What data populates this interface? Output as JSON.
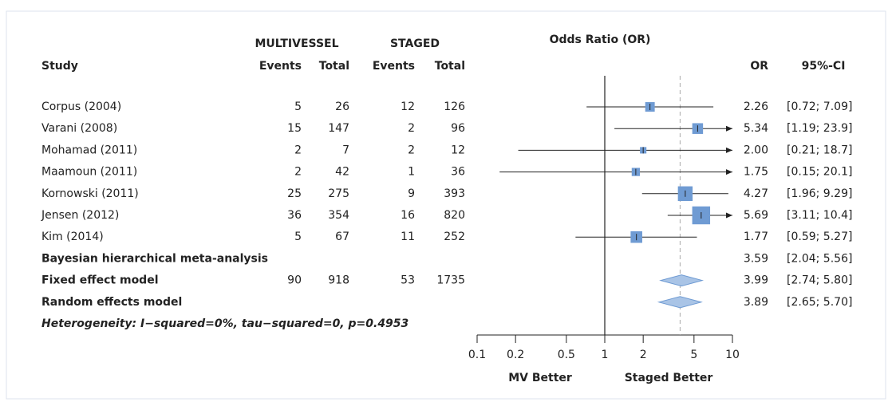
{
  "chart_data": {
    "type": "forest",
    "x_title": "Odds Ratio (OR)",
    "group_labels": [
      "MULTIVESSEL",
      "STAGED"
    ],
    "columns": [
      "Study",
      "Events",
      "Total",
      "Events",
      "Total",
      "OR",
      "95%-CI"
    ],
    "studies": [
      {
        "name": "Corpus (2004)",
        "mv_events": 5,
        "mv_total": 26,
        "st_events": 12,
        "st_total": 126,
        "or": 2.26,
        "or_label": "2.26",
        "ci": [
          0.72,
          7.09
        ],
        "ci_label": "[0.72; 7.09]"
      },
      {
        "name": "Varani (2008)",
        "mv_events": 15,
        "mv_total": 147,
        "st_events": 2,
        "st_total": 96,
        "or": 5.34,
        "or_label": "5.34",
        "ci": [
          1.19,
          23.9
        ],
        "ci_label": "[1.19; 23.9]"
      },
      {
        "name": "Mohamad (2011)",
        "mv_events": 2,
        "mv_total": 7,
        "st_events": 2,
        "st_total": 12,
        "or": 2.0,
        "or_label": "2.00",
        "ci": [
          0.21,
          18.7
        ],
        "ci_label": "[0.21; 18.7]"
      },
      {
        "name": "Maamoun (2011)",
        "mv_events": 2,
        "mv_total": 42,
        "st_events": 1,
        "st_total": 36,
        "or": 1.75,
        "or_label": "1.75",
        "ci": [
          0.15,
          20.1
        ],
        "ci_label": "[0.15; 20.1]"
      },
      {
        "name": "Kornowski (2011)",
        "mv_events": 25,
        "mv_total": 275,
        "st_events": 9,
        "st_total": 393,
        "or": 4.27,
        "or_label": "4.27",
        "ci": [
          1.96,
          9.29
        ],
        "ci_label": "[1.96; 9.29]"
      },
      {
        "name": "Jensen (2012)",
        "mv_events": 36,
        "mv_total": 354,
        "st_events": 16,
        "st_total": 820,
        "or": 5.69,
        "or_label": "5.69",
        "ci": [
          3.11,
          10.4
        ],
        "ci_label": "[3.11; 10.4]"
      },
      {
        "name": "Kim (2014)",
        "mv_events": 5,
        "mv_total": 67,
        "st_events": 11,
        "st_total": 252,
        "or": 1.77,
        "or_label": "1.77",
        "ci": [
          0.59,
          5.27
        ],
        "ci_label": "[0.59; 5.27]"
      }
    ],
    "summaries": [
      {
        "name": "Bayesian hierarchical meta-analysis",
        "or": 3.59,
        "or_label": "3.59",
        "ci": [
          2.04,
          5.56
        ],
        "ci_label": "[2.04; 5.56]",
        "color": "#e8472b"
      },
      {
        "name": "Fixed effect model",
        "mv_events": 90,
        "mv_total": 918,
        "st_events": 53,
        "st_total": 1735,
        "or": 3.99,
        "or_label": "3.99",
        "ci": [
          2.74,
          5.8
        ],
        "ci_label": "[2.74; 5.80]",
        "diamond": true
      },
      {
        "name": "Random effects model",
        "or": 3.89,
        "or_label": "3.89",
        "ci": [
          2.65,
          5.7
        ],
        "ci_label": "[2.65; 5.70]",
        "diamond": true,
        "reference_line": true
      }
    ],
    "heterogeneity": "Heterogeneity: I−squared=0%, tau−squared=0, p=0.4953",
    "direction_labels": [
      "MV Better",
      "Staged Better"
    ],
    "xlim": [
      0.1,
      10
    ],
    "xticks": [
      0.1,
      0.2,
      0.5,
      1,
      2,
      5,
      10
    ],
    "log_x": true,
    "reference": 1,
    "marker_color": "#6f9bd3",
    "diamond_color": "#a9c4e6"
  }
}
